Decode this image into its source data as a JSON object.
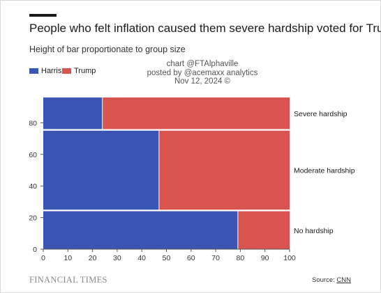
{
  "header": {
    "title": "People who felt inflation caused them severe hardship voted for Trump",
    "subtitle": "Height of bar proportionate to group size"
  },
  "attribution": {
    "line1": "chart @FTAlphaville",
    "line2": "posted by @acemaxx analytics",
    "line3": "Nov 12, 2024 ©"
  },
  "footer": {
    "logo_text": "FINANCIAL TIMES",
    "source_label": "Source:",
    "source_link": "CNN"
  },
  "colors": {
    "harris": "#3a55b4",
    "trump": "#d9534f",
    "axis": "#555555"
  },
  "chart_data": {
    "type": "bar",
    "subtype": "mosaic",
    "title": "People who felt inflation caused them severe hardship voted for Trump",
    "subtitle": "Height of bar proportionate to group size",
    "legend": [
      "Harris",
      "Trump"
    ],
    "legend_position": "top-left",
    "xlim": [
      0,
      100
    ],
    "ylim": [
      0,
      100
    ],
    "x_ticks": [
      0,
      10,
      20,
      30,
      40,
      50,
      60,
      70,
      80,
      90,
      100
    ],
    "y_ticks": [
      0,
      20,
      40,
      60,
      80
    ],
    "grid": false,
    "categories": [
      {
        "name": "No hardship",
        "y_start": 0,
        "y_end": 24
      },
      {
        "name": "Moderate hardship",
        "y_start": 25,
        "y_end": 75
      },
      {
        "name": "Severe hardship",
        "y_start": 76,
        "y_end": 96
      }
    ],
    "series": [
      {
        "name": "Harris",
        "values": [
          79,
          47,
          24
        ]
      },
      {
        "name": "Trump",
        "values": [
          21,
          53,
          76
        ]
      }
    ]
  }
}
